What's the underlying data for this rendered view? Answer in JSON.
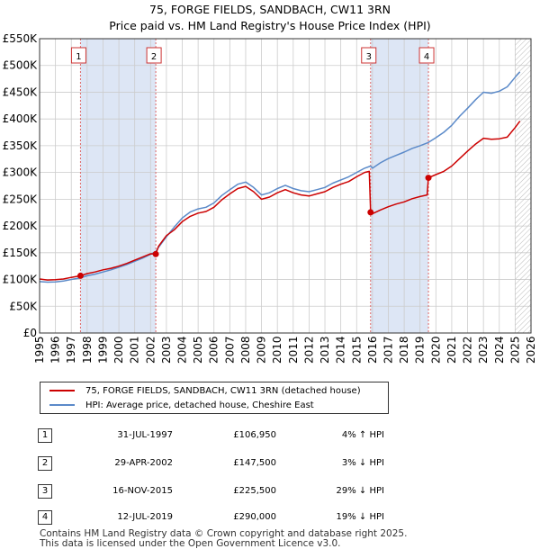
{
  "title": "75, FORGE FIELDS, SANDBACH, CW11 3RN",
  "subtitle": "Price paid vs. HM Land Registry's House Price Index (HPI)",
  "colors": {
    "property": "#cc0000",
    "hpi": "#5b8ac9",
    "shade": "#dde6f5",
    "vline": "#dd6666",
    "grid": "#cccccc"
  },
  "legend": {
    "property_label": "75, FORGE FIELDS, SANDBACH, CW11 3RN (detached house)",
    "hpi_label": "HPI: Average price, detached house, Cheshire East"
  },
  "sales": [
    {
      "num": "1",
      "date": "31-JUL-1997",
      "price": "£106,950",
      "hpi": "4% ↑ HPI"
    },
    {
      "num": "2",
      "date": "29-APR-2002",
      "price": "£147,500",
      "hpi": "3% ↓ HPI"
    },
    {
      "num": "3",
      "date": "16-NOV-2015",
      "price": "£225,500",
      "hpi": "29% ↓ HPI"
    },
    {
      "num": "4",
      "date": "12-JUL-2019",
      "price": "£290,000",
      "hpi": "19% ↓ HPI"
    }
  ],
  "footer": {
    "line1": "Contains HM Land Registry data © Crown copyright and database right 2025.",
    "line2": "This data is licensed under the Open Government Licence v3.0."
  },
  "chart_data": {
    "type": "line",
    "title": "75, FORGE FIELDS, SANDBACH, CW11 3RN",
    "subtitle": "Price paid vs. HM Land Registry's House Price Index (HPI)",
    "xlim": [
      1995,
      2026
    ],
    "ylim": [
      0,
      550000
    ],
    "x_ticks": [
      1995,
      1996,
      1997,
      1998,
      1999,
      2000,
      2001,
      2002,
      2003,
      2004,
      2005,
      2006,
      2007,
      2008,
      2009,
      2010,
      2011,
      2012,
      2013,
      2014,
      2015,
      2016,
      2017,
      2018,
      2019,
      2020,
      2021,
      2022,
      2023,
      2024,
      2025,
      2026
    ],
    "y_ticks": [
      {
        "value": 0,
        "label": "£0"
      },
      {
        "value": 50000,
        "label": "£50K"
      },
      {
        "value": 100000,
        "label": "£100K"
      },
      {
        "value": 150000,
        "label": "£150K"
      },
      {
        "value": 200000,
        "label": "£200K"
      },
      {
        "value": 250000,
        "label": "£250K"
      },
      {
        "value": 300000,
        "label": "£300K"
      },
      {
        "value": 350000,
        "label": "£350K"
      },
      {
        "value": 400000,
        "label": "£400K"
      },
      {
        "value": 450000,
        "label": "£450K"
      },
      {
        "value": 500000,
        "label": "£500K"
      },
      {
        "value": 550000,
        "label": "£550K"
      }
    ],
    "shaded_ranges": [
      [
        1997.58,
        2002.33
      ],
      [
        2015.88,
        2019.53
      ]
    ],
    "forecast_from": 2025.0,
    "markers": [
      {
        "label": "1",
        "x": 1997.58,
        "y": 106950
      },
      {
        "label": "2",
        "x": 2002.33,
        "y": 147500
      },
      {
        "label": "3",
        "x": 2015.88,
        "y": 225500
      },
      {
        "label": "4",
        "x": 2019.53,
        "y": 290000
      }
    ],
    "series": [
      {
        "name": "HPI: Average price, detached house, Cheshire East",
        "x": [
          1995,
          1995.5,
          1996,
          1996.5,
          1997,
          1997.58,
          1998,
          1998.5,
          1999,
          1999.5,
          2000,
          2000.5,
          2001,
          2001.5,
          2002,
          2002.33,
          2002.5,
          2003,
          2003.5,
          2004,
          2004.5,
          2005,
          2005.5,
          2006,
          2006.5,
          2007,
          2007.5,
          2008,
          2008.5,
          2009,
          2009.5,
          2010,
          2010.5,
          2011,
          2011.5,
          2012,
          2012.5,
          2013,
          2013.5,
          2014,
          2014.5,
          2015,
          2015.5,
          2015.88,
          2016,
          2016.5,
          2017,
          2017.5,
          2018,
          2018.5,
          2019,
          2019.53,
          2020,
          2020.5,
          2021,
          2021.5,
          2022,
          2022.5,
          2023,
          2023.5,
          2024,
          2024.5,
          2025,
          2025.3
        ],
        "values": [
          96000,
          95000,
          95500,
          97000,
          100000,
          103000,
          107000,
          110000,
          114000,
          118000,
          123000,
          128000,
          134000,
          140000,
          147000,
          152000,
          160000,
          180000,
          198000,
          215000,
          226000,
          232000,
          235000,
          243000,
          257000,
          268000,
          278000,
          282000,
          272000,
          258000,
          262000,
          270000,
          276000,
          270000,
          266000,
          264000,
          268000,
          272000,
          280000,
          286000,
          292000,
          300000,
          308000,
          312000,
          308000,
          318000,
          326000,
          332000,
          338000,
          345000,
          350000,
          356000,
          365000,
          375000,
          388000,
          405000,
          420000,
          436000,
          450000,
          448000,
          452000,
          460000,
          478000,
          488000
        ]
      },
      {
        "name": "75, FORGE FIELDS, SANDBACH, CW11 3RN (detached house)",
        "x": [
          1995,
          1995.5,
          1996,
          1996.5,
          1997,
          1997.58,
          1998,
          1998.5,
          1999,
          1999.5,
          2000,
          2000.5,
          2001,
          2001.5,
          2002,
          2002.33,
          2002.5,
          2003,
          2003.5,
          2004,
          2004.5,
          2005,
          2005.5,
          2006,
          2006.5,
          2007,
          2007.5,
          2008,
          2008.5,
          2009,
          2009.5,
          2010,
          2010.5,
          2011,
          2011.5,
          2012,
          2012.5,
          2013,
          2013.5,
          2014,
          2014.5,
          2015,
          2015.5,
          2015.8,
          2015.88,
          2016,
          2016.5,
          2017,
          2017.5,
          2018,
          2018.5,
          2019,
          2019.45,
          2019.53,
          2020,
          2020.5,
          2021,
          2021.5,
          2022,
          2022.5,
          2023,
          2023.5,
          2024,
          2024.5,
          2025,
          2025.3
        ],
        "values": [
          101000,
          99000,
          99500,
          101000,
          104000,
          106950,
          111000,
          114000,
          118000,
          121000,
          125000,
          130000,
          136000,
          142000,
          148000,
          147500,
          162000,
          182000,
          193000,
          208000,
          218000,
          224000,
          227000,
          235000,
          249000,
          260000,
          270000,
          274000,
          264000,
          250000,
          254000,
          262000,
          268000,
          262000,
          258000,
          256000,
          260000,
          264000,
          272000,
          278000,
          283000,
          292000,
          300000,
          302000,
          225500,
          223000,
          230000,
          236000,
          241000,
          245000,
          251000,
          255000,
          258000,
          290000,
          296000,
          302000,
          312000,
          326000,
          340000,
          353000,
          364000,
          362000,
          363000,
          366000,
          384000,
          396000
        ]
      }
    ]
  }
}
